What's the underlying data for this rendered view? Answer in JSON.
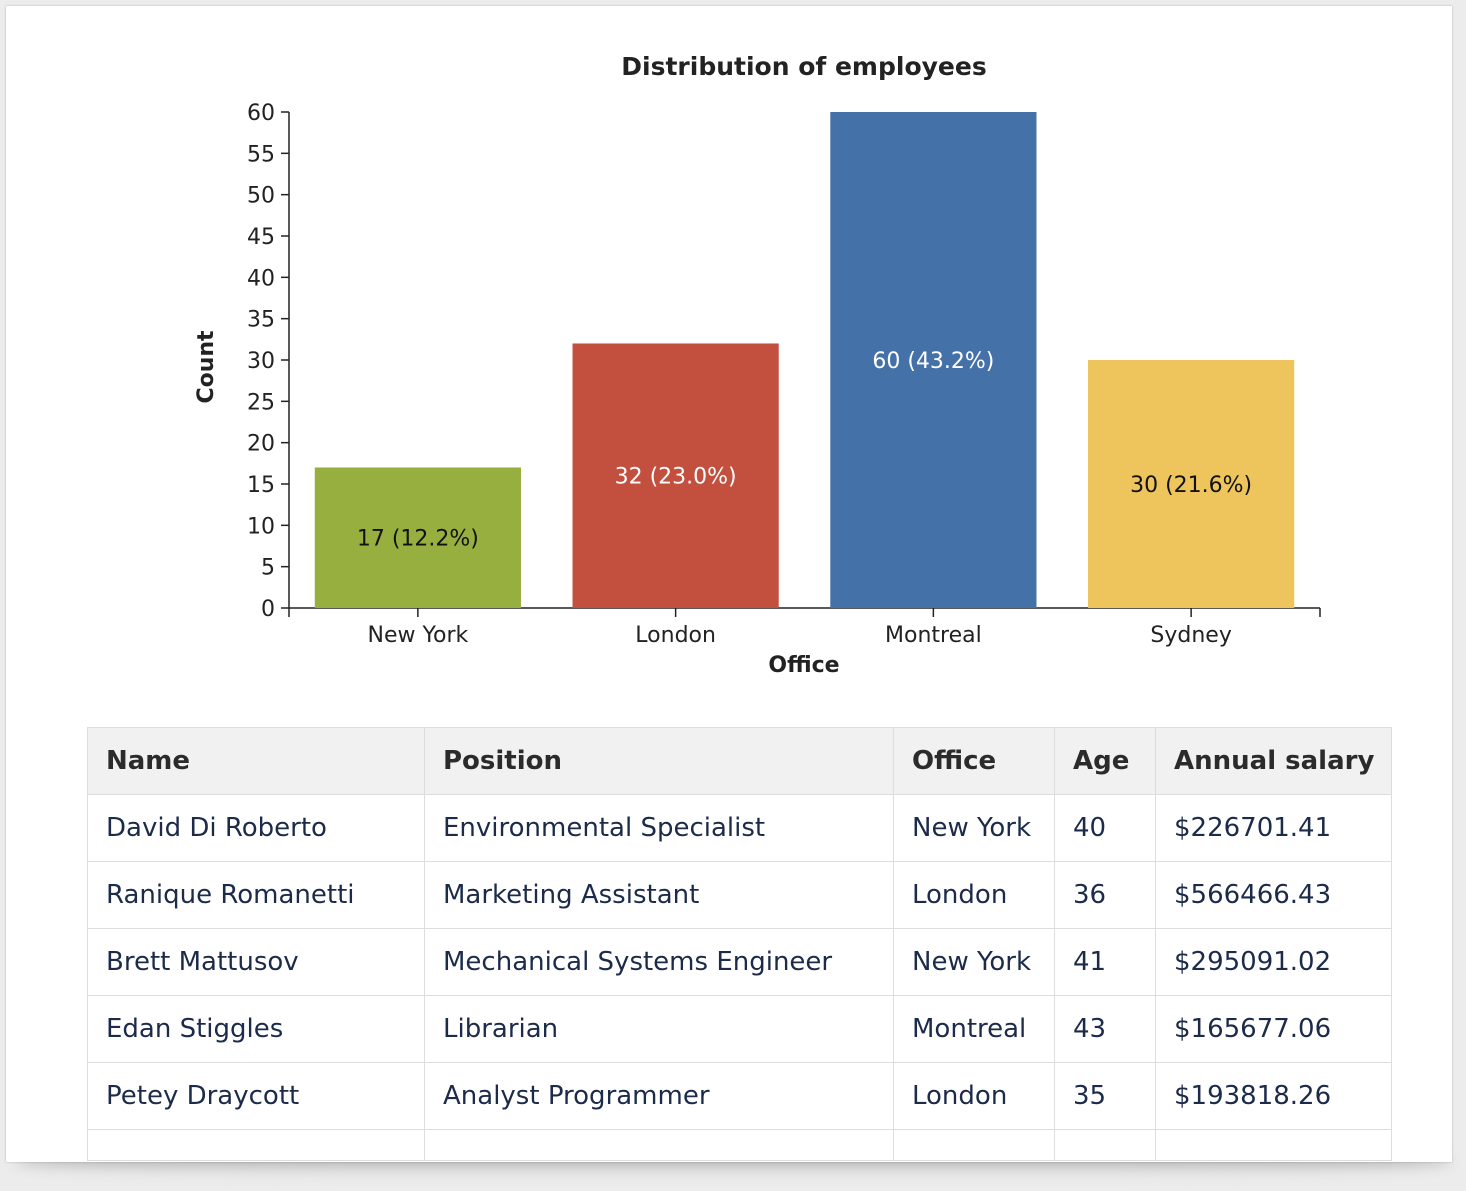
{
  "chart_data": {
    "type": "bar",
    "title": "Distribution of employees",
    "xlabel": "Office",
    "ylabel": "Count",
    "categories": [
      "New York",
      "London",
      "Montreal",
      "Sydney"
    ],
    "values": [
      17,
      32,
      60,
      30
    ],
    "data_labels": [
      "17 (12.2%)",
      "32 (23.0%)",
      "60 (43.2%)",
      "30 (21.6%)"
    ],
    "colors": [
      "#97af3e",
      "#c34f3e",
      "#4571a9",
      "#eec55c"
    ],
    "label_colors": [
      "#111111",
      "#ffffff",
      "#ffffff",
      "#111111"
    ],
    "ylim": [
      0,
      60
    ],
    "yticks": [
      0,
      5,
      10,
      15,
      20,
      25,
      30,
      35,
      40,
      45,
      50,
      55,
      60
    ],
    "grid": false
  },
  "table": {
    "columns": [
      "Name",
      "Position",
      "Office",
      "Age",
      "Annual salary"
    ],
    "rows": [
      [
        "David Di Roberto",
        "Environmental Specialist",
        "New York",
        "40",
        "$226701.41"
      ],
      [
        "Ranique Romanetti",
        "Marketing Assistant",
        "London",
        "36",
        "$566466.43"
      ],
      [
        "Brett Mattusov",
        "Mechanical Systems Engineer",
        "New York",
        "41",
        "$295091.02"
      ],
      [
        "Edan Stiggles",
        "Librarian",
        "Montreal",
        "43",
        "$165677.06"
      ],
      [
        "Petey Draycott",
        "Analyst Programmer",
        "London",
        "35",
        "$193818.26"
      ]
    ]
  }
}
